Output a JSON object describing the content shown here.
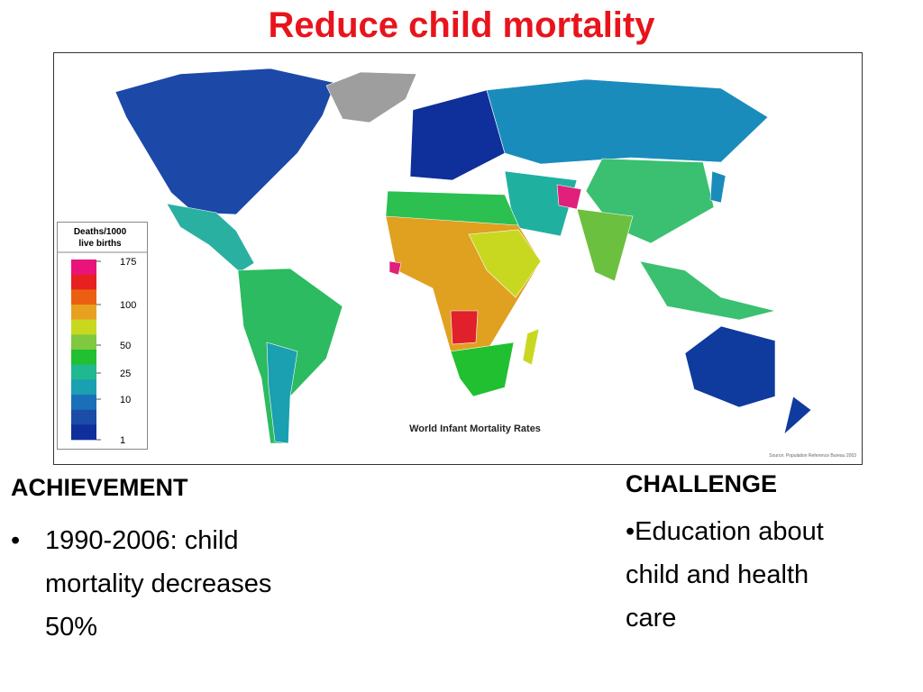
{
  "title": "Reduce child mortality",
  "map": {
    "legend": {
      "title": [
        "Deaths/1000",
        "live births"
      ],
      "labels": [
        "175",
        "100",
        "50",
        "25",
        "10",
        "1"
      ]
    },
    "caption": "World Infant Mortality Rates",
    "source": "Source: Population Reference Bureau 2003"
  },
  "achievement": {
    "heading": "ACHIEVEMENT",
    "items": [
      "1990-2006: child mortality decreases 50%"
    ]
  },
  "challenge": {
    "heading": "CHALLENGE",
    "lines": [
      "•Education about",
      "child and health",
      "care"
    ]
  }
}
